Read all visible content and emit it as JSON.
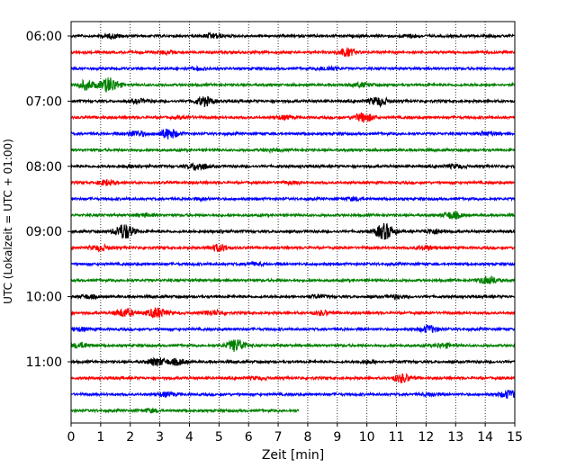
{
  "chart_data": {
    "type": "line",
    "xlabel": "Zeit  [min]",
    "ylabel": "UTC (Lokalzeit = UTC + 01:00)",
    "xlim": [
      0,
      15
    ],
    "x_ticks": [
      "0",
      "1",
      "2",
      "3",
      "4",
      "5",
      "6",
      "7",
      "8",
      "9",
      "10",
      "11",
      "12",
      "13",
      "14",
      "15"
    ],
    "y_ticks": [
      "06:00",
      "07:00",
      "08:00",
      "09:00",
      "10:00",
      "11:00"
    ],
    "grid": "vertical dotted lines at each minute",
    "colors": [
      "#000000",
      "#ff0000",
      "#0000ff",
      "#008000"
    ],
    "traces": [
      {
        "start": "06:00",
        "color": "#000000",
        "end_min": 15,
        "events": [
          [
            1.4,
            0.6
          ],
          [
            4.8,
            0.8
          ],
          [
            11.5,
            0.5
          ]
        ]
      },
      {
        "start": "06:15",
        "color": "#ff0000",
        "end_min": 15,
        "events": [
          [
            9.3,
            1.4
          ],
          [
            3.2,
            0.5
          ]
        ]
      },
      {
        "start": "06:30",
        "color": "#0000ff",
        "end_min": 15,
        "events": [
          [
            8.7,
            0.6
          ],
          [
            4.3,
            0.4
          ]
        ]
      },
      {
        "start": "06:45",
        "color": "#008000",
        "end_min": 15,
        "events": [
          [
            1.3,
            2.6
          ],
          [
            0.5,
            1.5
          ],
          [
            9.8,
            0.7
          ]
        ]
      },
      {
        "start": "07:00",
        "color": "#000000",
        "end_min": 15,
        "events": [
          [
            4.5,
            1.6
          ],
          [
            10.4,
            1.5
          ],
          [
            2.3,
            0.6
          ]
        ]
      },
      {
        "start": "07:15",
        "color": "#ff0000",
        "end_min": 15,
        "events": [
          [
            9.9,
            1.6
          ],
          [
            7.2,
            0.6
          ],
          [
            3.8,
            0.4
          ]
        ]
      },
      {
        "start": "07:30",
        "color": "#0000ff",
        "end_min": 15,
        "events": [
          [
            3.3,
            1.8
          ],
          [
            2.2,
            1.0
          ],
          [
            14.1,
            0.6
          ]
        ]
      },
      {
        "start": "07:45",
        "color": "#008000",
        "end_min": 15,
        "events": [
          [
            6.8,
            0.4
          ]
        ]
      },
      {
        "start": "08:00",
        "color": "#000000",
        "end_min": 15,
        "events": [
          [
            4.3,
            1.3
          ],
          [
            2.1,
            0.5
          ],
          [
            13.0,
            0.6
          ]
        ]
      },
      {
        "start": "08:15",
        "color": "#ff0000",
        "end_min": 15,
        "events": [
          [
            1.2,
            0.9
          ],
          [
            7.4,
            0.4
          ]
        ]
      },
      {
        "start": "08:30",
        "color": "#0000ff",
        "end_min": 15,
        "events": [
          [
            9.6,
            0.5
          ],
          [
            4.4,
            0.4
          ]
        ]
      },
      {
        "start": "08:45",
        "color": "#008000",
        "end_min": 15,
        "events": [
          [
            12.9,
            1.2
          ],
          [
            2.5,
            0.5
          ]
        ]
      },
      {
        "start": "09:00",
        "color": "#000000",
        "end_min": 15,
        "events": [
          [
            1.8,
            2.8
          ],
          [
            10.6,
            2.8
          ],
          [
            12.3,
            0.8
          ],
          [
            5.0,
            0.4
          ]
        ]
      },
      {
        "start": "09:15",
        "color": "#ff0000",
        "end_min": 15,
        "events": [
          [
            5.0,
            1.2
          ],
          [
            1.0,
            0.9
          ],
          [
            12.0,
            0.7
          ]
        ]
      },
      {
        "start": "09:30",
        "color": "#0000ff",
        "end_min": 15,
        "events": [
          [
            6.2,
            0.4
          ]
        ]
      },
      {
        "start": "09:45",
        "color": "#008000",
        "end_min": 15,
        "events": [
          [
            14.1,
            1.4
          ]
        ]
      },
      {
        "start": "10:00",
        "color": "#000000",
        "end_min": 15,
        "events": [
          [
            0.6,
            0.6
          ],
          [
            8.3,
            0.5
          ],
          [
            11.0,
            0.5
          ]
        ]
      },
      {
        "start": "10:15",
        "color": "#ff0000",
        "end_min": 15,
        "events": [
          [
            1.8,
            1.4
          ],
          [
            2.9,
            1.8
          ],
          [
            4.8,
            0.8
          ],
          [
            8.5,
            0.7
          ]
        ]
      },
      {
        "start": "10:30",
        "color": "#0000ff",
        "end_min": 15,
        "events": [
          [
            12.1,
            1.2
          ],
          [
            0.3,
            0.6
          ]
        ]
      },
      {
        "start": "10:45",
        "color": "#008000",
        "end_min": 15,
        "events": [
          [
            5.6,
            2.2
          ],
          [
            0.3,
            0.8
          ],
          [
            12.6,
            0.7
          ]
        ]
      },
      {
        "start": "11:00",
        "color": "#000000",
        "end_min": 15,
        "events": [
          [
            2.9,
            1.4
          ],
          [
            3.6,
            1.0
          ],
          [
            10.1,
            0.5
          ]
        ]
      },
      {
        "start": "11:15",
        "color": "#ff0000",
        "end_min": 15,
        "events": [
          [
            11.2,
            1.4
          ],
          [
            6.3,
            0.4
          ]
        ]
      },
      {
        "start": "11:30",
        "color": "#0000ff",
        "end_min": 15,
        "events": [
          [
            14.8,
            1.3
          ],
          [
            3.2,
            0.7
          ],
          [
            12.2,
            0.5
          ]
        ]
      },
      {
        "start": "11:45",
        "color": "#008000",
        "end_min": 7.7,
        "events": [
          [
            2.7,
            0.5
          ]
        ]
      }
    ]
  }
}
